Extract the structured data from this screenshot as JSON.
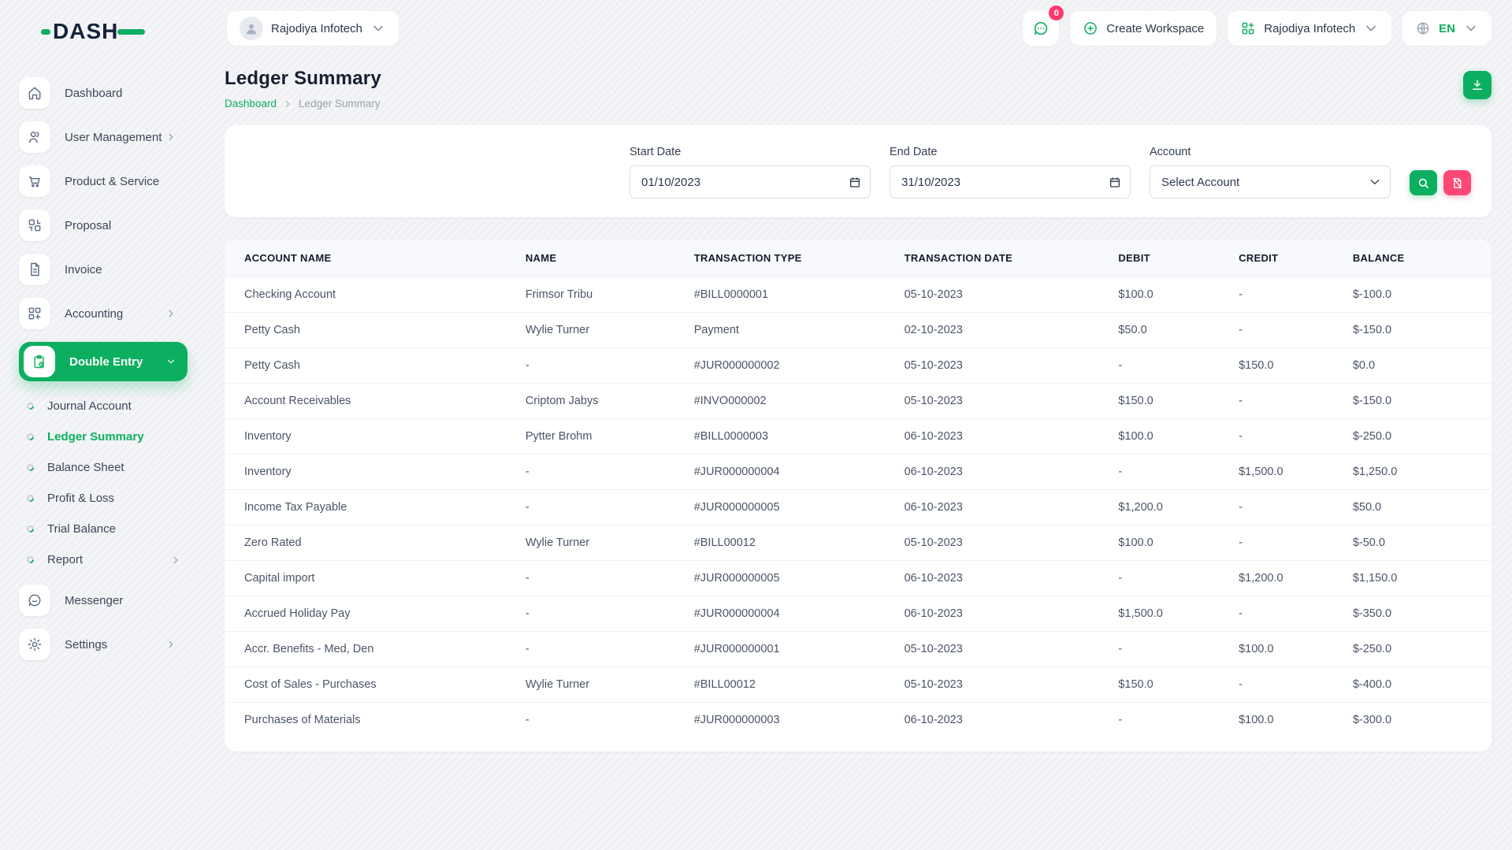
{
  "brand": {
    "name": "DASH"
  },
  "topbar": {
    "workspace": {
      "label": "Rajodiya Infotech"
    },
    "messages": {
      "badge": "0"
    },
    "create_workspace": {
      "label": "Create Workspace"
    },
    "company": {
      "label": "Rajodiya Infotech"
    },
    "language": {
      "label": "EN"
    }
  },
  "sidebar": {
    "items": [
      {
        "label": "Dashboard",
        "icon": "home-icon"
      },
      {
        "label": "User Management",
        "icon": "users-icon",
        "chevron": "right"
      },
      {
        "label": "Product & Service",
        "icon": "cart-icon"
      },
      {
        "label": "Proposal",
        "icon": "proposal-icon"
      },
      {
        "label": "Invoice",
        "icon": "invoice-icon"
      },
      {
        "label": "Accounting",
        "icon": "accounting-icon",
        "chevron": "right"
      },
      {
        "label": "Double Entry",
        "icon": "double-entry-icon",
        "chevron": "down",
        "active": true
      }
    ],
    "submenu": [
      {
        "label": "Journal Account"
      },
      {
        "label": "Ledger Summary",
        "active": true
      },
      {
        "label": "Balance Sheet"
      },
      {
        "label": "Profit & Loss"
      },
      {
        "label": "Trial Balance"
      },
      {
        "label": "Report",
        "chevron": "right"
      }
    ],
    "bottom_items": [
      {
        "label": "Messenger",
        "icon": "messenger-icon"
      },
      {
        "label": "Settings",
        "icon": "settings-icon",
        "chevron": "right"
      }
    ]
  },
  "page": {
    "title": "Ledger Summary",
    "breadcrumb": {
      "home": "Dashboard",
      "current": "Ledger Summary"
    }
  },
  "filters": {
    "start_date": {
      "label": "Start Date",
      "value": "01/10/2023"
    },
    "end_date": {
      "label": "End Date",
      "value": "31/10/2023"
    },
    "account": {
      "label": "Account",
      "value": "Select Account"
    }
  },
  "table": {
    "columns": [
      "ACCOUNT NAME",
      "NAME",
      "TRANSACTION TYPE",
      "TRANSACTION DATE",
      "DEBIT",
      "CREDIT",
      "BALANCE"
    ],
    "rows": [
      [
        "Checking Account",
        "Frimsor Tribu",
        "#BILL0000001",
        "05-10-2023",
        "$100.0",
        "-",
        "$-100.0"
      ],
      [
        "Petty Cash",
        "Wylie Turner",
        "Payment",
        "02-10-2023",
        "$50.0",
        "-",
        "$-150.0"
      ],
      [
        "Petty Cash",
        "-",
        "#JUR000000002",
        "05-10-2023",
        "-",
        "$150.0",
        "$0.0"
      ],
      [
        "Account Receivables",
        "Criptom Jabys",
        "#INVO000002",
        "05-10-2023",
        "$150.0",
        "-",
        "$-150.0"
      ],
      [
        "Inventory",
        "Pytter Brohm",
        "#BILL0000003",
        "06-10-2023",
        "$100.0",
        "-",
        "$-250.0"
      ],
      [
        "Inventory",
        "-",
        "#JUR000000004",
        "06-10-2023",
        "-",
        "$1,500.0",
        "$1,250.0"
      ],
      [
        "Income Tax Payable",
        "-",
        "#JUR000000005",
        "06-10-2023",
        "$1,200.0",
        "-",
        "$50.0"
      ],
      [
        "Zero Rated",
        "Wylie Turner",
        "#BILL00012",
        "05-10-2023",
        "$100.0",
        "-",
        "$-50.0"
      ],
      [
        "Capital import",
        "-",
        "#JUR000000005",
        "06-10-2023",
        "-",
        "$1,200.0",
        "$1,150.0"
      ],
      [
        "Accrued Holiday Pay",
        "-",
        "#JUR000000004",
        "06-10-2023",
        "$1,500.0",
        "-",
        "$-350.0"
      ],
      [
        "Accr. Benefits - Med, Den",
        "-",
        "#JUR000000001",
        "05-10-2023",
        "-",
        "$100.0",
        "$-250.0"
      ],
      [
        "Cost of Sales - Purchases",
        "Wylie Turner",
        "#BILL00012",
        "05-10-2023",
        "$150.0",
        "-",
        "$-400.0"
      ],
      [
        "Purchases of Materials",
        "-",
        "#JUR000000003",
        "06-10-2023",
        "-",
        "$100.0",
        "$-300.0"
      ]
    ]
  },
  "colors": {
    "accent": "#0caf60",
    "danger": "#ff4775"
  }
}
